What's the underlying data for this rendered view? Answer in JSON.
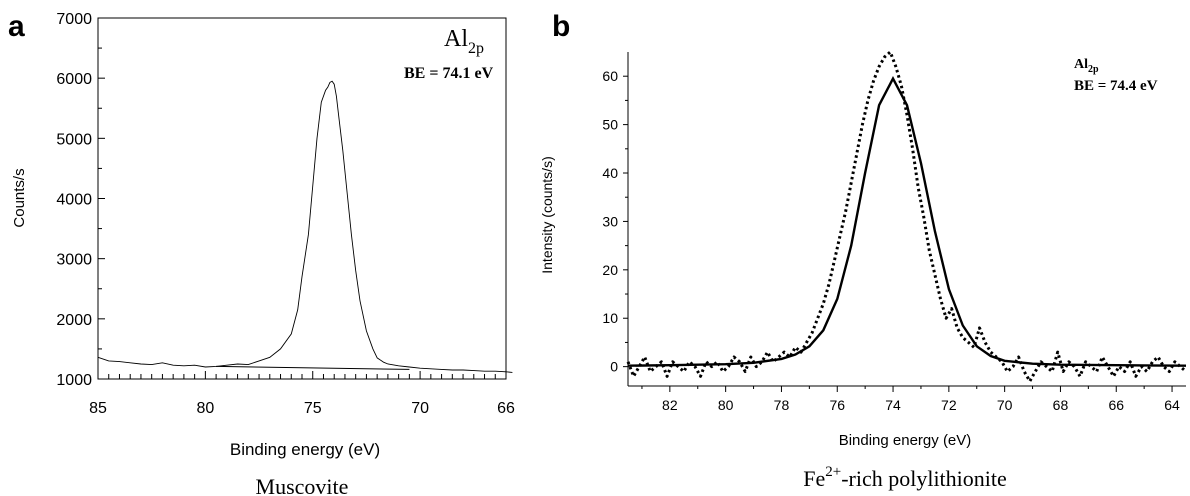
{
  "chart_data": [
    {
      "type": "line",
      "panel_label": "a",
      "caption": "Muscovite",
      "annotation": {
        "element": "Al",
        "subscript": "2p",
        "be_text": "BE = 74.1 eV"
      },
      "xlabel": "Binding energy (eV)",
      "ylabel": "Counts/s",
      "xlim": [
        85,
        66
      ],
      "ylim": [
        1000,
        7000
      ],
      "x_reversed": true,
      "x_ticks": [
        85,
        80,
        75,
        70,
        66
      ],
      "y_ticks": [
        1000,
        2000,
        3000,
        4000,
        5000,
        6000,
        7000
      ],
      "grid": false,
      "series": [
        {
          "style": "solid-thin",
          "x": [
            85.0,
            84.5,
            84.0,
            83.5,
            83.0,
            82.5,
            82.0,
            81.5,
            81.0,
            80.5,
            80.0,
            79.5,
            79.0,
            78.5,
            78.0,
            77.5,
            77.0,
            76.5,
            76.0,
            75.7,
            75.5,
            75.2,
            75.0,
            74.8,
            74.6,
            74.4,
            74.3,
            74.2,
            74.1,
            74.0,
            73.9,
            73.8,
            73.6,
            73.4,
            73.2,
            73.0,
            72.8,
            72.5,
            72.2,
            72.0,
            71.7,
            71.5,
            71.0,
            70.5,
            70.0,
            69.5,
            69.0,
            68.5,
            68.0,
            67.5,
            67.0,
            66.5,
            66.0,
            65.7
          ],
          "y": [
            1360,
            1300,
            1290,
            1270,
            1250,
            1240,
            1270,
            1230,
            1220,
            1230,
            1200,
            1210,
            1230,
            1250,
            1240,
            1300,
            1360,
            1500,
            1750,
            2150,
            2700,
            3400,
            4200,
            5000,
            5600,
            5800,
            5850,
            5930,
            5950,
            5900,
            5700,
            5400,
            4800,
            4100,
            3400,
            2800,
            2300,
            1800,
            1500,
            1350,
            1280,
            1250,
            1220,
            1200,
            1180,
            1170,
            1160,
            1150,
            1150,
            1140,
            1130,
            1130,
            1120,
            1110
          ]
        },
        {
          "style": "baseline",
          "x": [
            79.5,
            70.5
          ],
          "y": [
            1210,
            1160
          ]
        }
      ]
    },
    {
      "type": "line",
      "panel_label": "b",
      "caption": "Fe",
      "caption_superscript": "2+",
      "caption_suffix": "-rich polylithionite",
      "annotation": {
        "element": "Al",
        "subscript": "2p",
        "be_text": "BE = 74.4 eV"
      },
      "xlabel": "Binding energy (eV)",
      "ylabel": "Intensity (counts/s)",
      "xlim": [
        83.5,
        63.5
      ],
      "ylim": [
        -4,
        65
      ],
      "x_reversed": true,
      "x_ticks": [
        82,
        80,
        78,
        76,
        74,
        72,
        70,
        68,
        66,
        64
      ],
      "y_ticks": [
        0,
        10,
        20,
        30,
        40,
        50,
        60
      ],
      "grid": false,
      "series": [
        {
          "style": "solid-thick",
          "x": [
            83.5,
            82.0,
            80.0,
            79.0,
            78.0,
            77.5,
            77.0,
            76.5,
            76.0,
            75.5,
            75.0,
            74.5,
            74.0,
            73.5,
            73.0,
            72.5,
            72.0,
            71.5,
            71.0,
            70.5,
            70.0,
            69.0,
            68.0,
            66.0,
            63.5
          ],
          "y": [
            0.2,
            0.3,
            0.5,
            0.8,
            1.6,
            2.5,
            4.2,
            7.5,
            14,
            25,
            40,
            54,
            59.5,
            54,
            42,
            28,
            16,
            8.5,
            4.2,
            2.2,
            1.2,
            0.6,
            0.4,
            0.3,
            0.2
          ]
        },
        {
          "style": "dotted",
          "x": [
            83.5,
            83.3,
            83.1,
            82.9,
            82.7,
            82.5,
            82.3,
            82.1,
            81.9,
            81.7,
            81.5,
            81.3,
            81.1,
            80.9,
            80.7,
            80.5,
            80.3,
            80.1,
            79.9,
            79.7,
            79.5,
            79.3,
            79.1,
            78.9,
            78.7,
            78.5,
            78.3,
            78.1,
            77.9,
            77.7,
            77.5,
            77.3,
            77.1,
            76.9,
            76.7,
            76.5,
            76.3,
            76.1,
            75.9,
            75.7,
            75.5,
            75.3,
            75.1,
            74.9,
            74.7,
            74.5,
            74.3,
            74.1,
            73.9,
            73.7,
            73.5,
            73.3,
            73.1,
            72.9,
            72.7,
            72.5,
            72.3,
            72.1,
            71.9,
            71.7,
            71.5,
            71.3,
            71.1,
            70.9,
            70.7,
            70.5,
            70.3,
            70.1,
            69.9,
            69.7,
            69.5,
            69.3,
            69.1,
            68.9,
            68.7,
            68.5,
            68.3,
            68.1,
            67.9,
            67.7,
            67.5,
            67.3,
            67.1,
            66.9,
            66.7,
            66.5,
            66.3,
            66.1,
            65.9,
            65.7,
            65.5,
            65.3,
            65.1,
            64.9,
            64.7,
            64.5,
            64.3,
            64.1,
            63.9,
            63.7,
            63.5
          ],
          "y": [
            1,
            -2,
            0,
            2,
            -1,
            0,
            1,
            -2,
            1,
            0,
            -1,
            1,
            0,
            -2,
            1,
            0,
            1,
            -1,
            0,
            2,
            1,
            -1,
            2,
            0,
            1,
            3,
            1,
            2,
            3,
            2,
            4,
            3,
            5,
            7,
            10,
            13,
            17,
            22,
            27,
            32,
            38,
            44,
            50,
            55,
            59,
            62,
            64,
            65,
            62,
            58,
            52,
            45,
            37,
            31,
            24,
            19,
            14,
            10,
            12,
            8,
            6,
            5,
            4,
            8,
            5,
            3,
            2,
            1,
            -1,
            0,
            2,
            -1,
            -3,
            -1,
            1,
            0,
            -1,
            3,
            -1,
            1,
            0,
            -2,
            1,
            0,
            -1,
            2,
            0,
            -2,
            0,
            -1,
            1,
            -2,
            0,
            -1,
            1,
            2,
            0,
            -1,
            1,
            0,
            -1
          ]
        }
      ]
    }
  ]
}
